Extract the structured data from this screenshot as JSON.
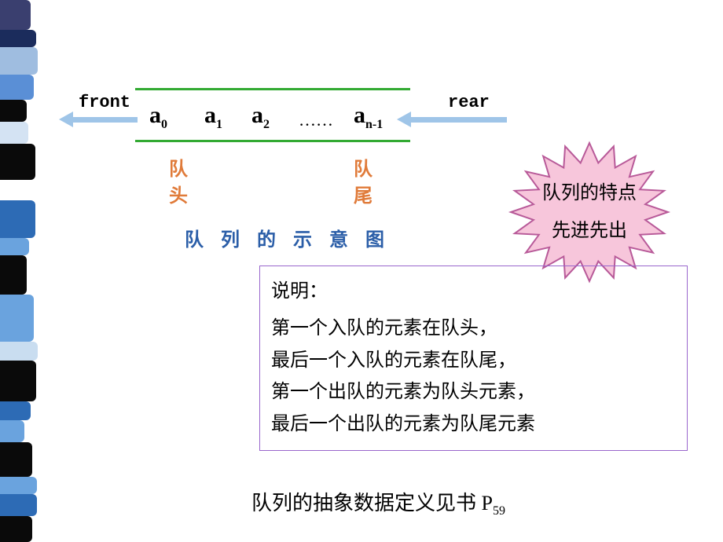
{
  "stripe": {
    "segments": [
      {
        "h": 38,
        "c": "#3a3f6f"
      },
      {
        "h": 22,
        "c": "#1b2c5c"
      },
      {
        "h": 35,
        "c": "#9fbde0"
      },
      {
        "h": 32,
        "c": "#5a8fd6"
      },
      {
        "h": 28,
        "c": "#0a0a0a"
      },
      {
        "h": 28,
        "c": "#d4e3f3"
      },
      {
        "h": 46,
        "c": "#0a0a0a"
      },
      {
        "h": 26,
        "c": "#ffffff"
      },
      {
        "h": 48,
        "c": "#2d6bb5"
      },
      {
        "h": 22,
        "c": "#6aa3de"
      },
      {
        "h": 50,
        "c": "#0a0a0a"
      },
      {
        "h": 60,
        "c": "#6aa3de"
      },
      {
        "h": 24,
        "c": "#c9ddf0"
      },
      {
        "h": 52,
        "c": "#0a0a0a"
      },
      {
        "h": 24,
        "c": "#2d6bb5"
      },
      {
        "h": 28,
        "c": "#6aa3de"
      },
      {
        "h": 44,
        "c": "#0a0a0a"
      },
      {
        "h": 22,
        "c": "#6aa3de"
      },
      {
        "h": 28,
        "c": "#2d6bb5"
      },
      {
        "h": 33,
        "c": "#0a0a0a"
      }
    ]
  },
  "labels": {
    "front": "front",
    "rear": "rear",
    "head": "队头",
    "tail": "队尾",
    "diagram_title": "队 列 的 示 意 图"
  },
  "elements": {
    "a0_base": "a",
    "a0_sub": "0",
    "a1_base": "a",
    "a1_sub": "1",
    "a2_base": "a",
    "a2_sub": "2",
    "dots": "……",
    "an_base": "a",
    "an_sub": "n-1"
  },
  "starburst": {
    "line1": "队列的特点",
    "line2": "先进先出",
    "fill": "#f7c6db",
    "stroke": "#b85a99"
  },
  "explain": {
    "intro": "说明：",
    "l1": "第一个入队的元素在队头，",
    "l2": "最后一个入队的元素在队尾，",
    "l3": "第一个出队的元素为队头元素，",
    "l4": "最后一个出队的元素为队尾元素"
  },
  "footer": {
    "prefix": "队列的抽象数据定义见书 P",
    "page": "59"
  },
  "colors": {
    "line": "#33aa33",
    "arrow": "#9fc5e8",
    "head_tail": "#e07b3a",
    "title": "#2b5ea8",
    "box_border": "#9966cc"
  }
}
